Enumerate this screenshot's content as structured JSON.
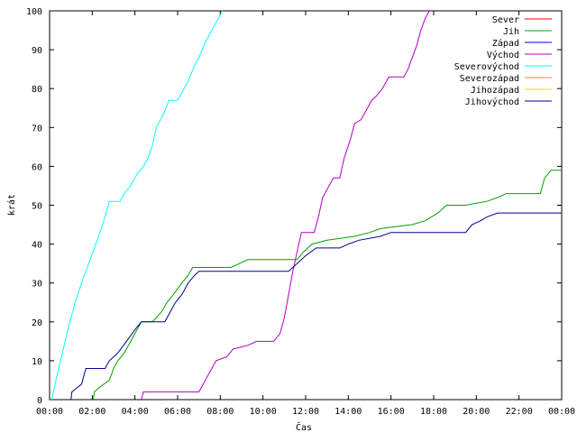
{
  "chart_data": {
    "type": "line",
    "title": "",
    "xlabel": "Čas",
    "ylabel": "krát",
    "xlim": [
      0,
      24
    ],
    "ylim": [
      0,
      100
    ],
    "grid": false,
    "legend_position": "top-right",
    "x_ticks": [
      0,
      2,
      4,
      6,
      8,
      10,
      12,
      14,
      16,
      18,
      20,
      22,
      24
    ],
    "x_tick_labels": [
      "00:00",
      "02:00",
      "04:00",
      "06:00",
      "08:00",
      "10:00",
      "12:00",
      "14:00",
      "16:00",
      "18:00",
      "20:00",
      "22:00",
      "00:00"
    ],
    "y_ticks": [
      0,
      10,
      20,
      30,
      40,
      50,
      60,
      70,
      80,
      90,
      100
    ],
    "y_tick_labels": [
      "0",
      "10",
      "20",
      "30",
      "40",
      "50",
      "60",
      "70",
      "80",
      "90",
      "100"
    ],
    "series": [
      {
        "name": "Sever",
        "color": "#ff0000",
        "points": []
      },
      {
        "name": "Jih",
        "color": "#00a000",
        "points": [
          [
            2.05,
            0
          ],
          [
            2.1,
            2
          ],
          [
            2.3,
            3
          ],
          [
            2.8,
            5
          ],
          [
            3.0,
            8
          ],
          [
            3.2,
            10
          ],
          [
            3.5,
            12
          ],
          [
            3.8,
            15
          ],
          [
            4.1,
            18
          ],
          [
            4.3,
            20
          ],
          [
            4.8,
            20
          ],
          [
            5.0,
            21
          ],
          [
            5.3,
            23
          ],
          [
            5.5,
            25
          ],
          [
            5.8,
            27
          ],
          [
            6.2,
            30
          ],
          [
            6.5,
            32
          ],
          [
            6.7,
            34
          ],
          [
            7.0,
            34
          ],
          [
            8.5,
            34
          ],
          [
            8.9,
            35
          ],
          [
            9.3,
            36
          ],
          [
            11.6,
            36
          ],
          [
            11.9,
            38
          ],
          [
            12.3,
            40
          ],
          [
            13.0,
            41
          ],
          [
            14.3,
            42
          ],
          [
            15.0,
            43
          ],
          [
            15.5,
            44
          ],
          [
            17.0,
            45
          ],
          [
            17.6,
            46
          ],
          [
            18.2,
            48
          ],
          [
            18.6,
            50
          ],
          [
            19.5,
            50
          ],
          [
            20.5,
            51
          ],
          [
            21.0,
            52
          ],
          [
            21.4,
            53
          ],
          [
            23.0,
            53
          ],
          [
            23.2,
            57
          ],
          [
            23.5,
            59
          ],
          [
            24.0,
            59
          ]
        ]
      },
      {
        "name": "Západ",
        "color": "#0000ff",
        "points": []
      },
      {
        "name": "Východ",
        "color": "#b000c0",
        "points": [
          [
            4.3,
            0
          ],
          [
            4.4,
            2
          ],
          [
            7.0,
            2
          ],
          [
            7.3,
            5
          ],
          [
            7.6,
            8
          ],
          [
            7.8,
            10
          ],
          [
            8.3,
            11
          ],
          [
            8.6,
            13
          ],
          [
            9.3,
            14
          ],
          [
            9.7,
            15
          ],
          [
            10.5,
            15
          ],
          [
            10.8,
            17
          ],
          [
            11.0,
            21
          ],
          [
            11.2,
            27
          ],
          [
            11.4,
            33
          ],
          [
            11.6,
            38
          ],
          [
            11.8,
            43
          ],
          [
            12.4,
            43
          ],
          [
            12.6,
            47
          ],
          [
            12.8,
            52
          ],
          [
            13.1,
            55
          ],
          [
            13.3,
            57
          ],
          [
            13.6,
            57
          ],
          [
            13.8,
            62
          ],
          [
            14.1,
            67
          ],
          [
            14.3,
            71
          ],
          [
            14.6,
            72
          ],
          [
            14.9,
            75
          ],
          [
            15.1,
            77
          ],
          [
            15.3,
            78
          ],
          [
            15.6,
            80
          ],
          [
            15.9,
            83
          ],
          [
            16.6,
            83
          ],
          [
            16.8,
            85
          ],
          [
            17.0,
            88
          ],
          [
            17.2,
            91
          ],
          [
            17.4,
            95
          ],
          [
            17.6,
            98
          ],
          [
            17.8,
            100
          ]
        ]
      },
      {
        "name": "Severovýchod",
        "color": "#00ffff",
        "points": [
          [
            0.1,
            0
          ],
          [
            0.3,
            5
          ],
          [
            0.6,
            12
          ],
          [
            0.9,
            19
          ],
          [
            1.2,
            25
          ],
          [
            1.5,
            30
          ],
          [
            1.9,
            36
          ],
          [
            2.3,
            42
          ],
          [
            2.6,
            47
          ],
          [
            2.8,
            51
          ],
          [
            3.3,
            51
          ],
          [
            3.5,
            53
          ],
          [
            3.8,
            55
          ],
          [
            4.1,
            58
          ],
          [
            4.4,
            60
          ],
          [
            4.6,
            62
          ],
          [
            4.8,
            65
          ],
          [
            5.0,
            70
          ],
          [
            5.3,
            73
          ],
          [
            5.6,
            77
          ],
          [
            6.0,
            77
          ],
          [
            6.2,
            79
          ],
          [
            6.5,
            82
          ],
          [
            6.8,
            86
          ],
          [
            7.0,
            88
          ],
          [
            7.3,
            92
          ],
          [
            7.6,
            95
          ],
          [
            7.9,
            98
          ],
          [
            8.1,
            100
          ]
        ]
      },
      {
        "name": "Severozápad",
        "color": "#ff8040",
        "points": []
      },
      {
        "name": "Jihozápad",
        "color": "#ffd700",
        "points": []
      },
      {
        "name": "Jihovýchod",
        "color": "#000090",
        "points": [
          [
            1.0,
            0
          ],
          [
            1.05,
            2
          ],
          [
            1.5,
            4
          ],
          [
            1.7,
            8
          ],
          [
            2.6,
            8
          ],
          [
            2.8,
            10
          ],
          [
            3.2,
            12
          ],
          [
            3.6,
            15
          ],
          [
            4.0,
            18
          ],
          [
            4.3,
            20
          ],
          [
            5.4,
            20
          ],
          [
            5.6,
            22
          ],
          [
            5.9,
            25
          ],
          [
            6.2,
            27
          ],
          [
            6.5,
            30
          ],
          [
            6.8,
            32
          ],
          [
            7.0,
            33
          ],
          [
            11.2,
            33
          ],
          [
            11.6,
            35
          ],
          [
            12.0,
            37
          ],
          [
            12.5,
            39
          ],
          [
            13.6,
            39
          ],
          [
            14.0,
            40
          ],
          [
            14.5,
            41
          ],
          [
            15.5,
            42
          ],
          [
            16.0,
            43
          ],
          [
            19.5,
            43
          ],
          [
            19.8,
            45
          ],
          [
            20.2,
            46
          ],
          [
            20.5,
            47
          ],
          [
            21.0,
            48
          ],
          [
            24.0,
            48
          ]
        ]
      }
    ]
  }
}
